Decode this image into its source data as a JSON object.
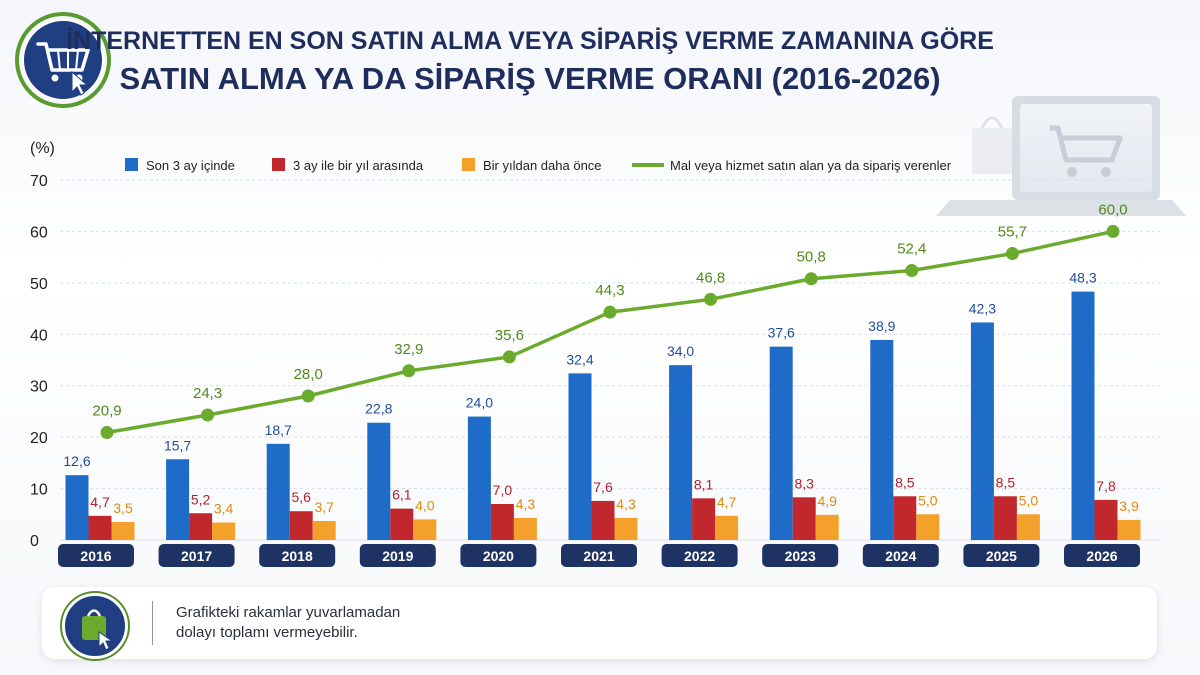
{
  "title_line1": "İNTERNETTEN EN SON SATIN ALMA VEYA SİPARİŞ VERME ZAMANINA GÖRE",
  "title_line2": "SATIN ALMA YA DA SİPARİŞ VERME ORANI (2016-2026)",
  "header_icon": "shopping-cart-cursor-icon",
  "decor_icon": "laptop-shopping-bag-icon",
  "note": {
    "icon": "shopping-bag-hand-icon",
    "text": "Grafikteki rakamlar yuvarlamadan\ndolayı toplamı vermeyebilir."
  },
  "colors": {
    "title": "#1f2d5c",
    "year_badge": "#1f3264",
    "series_1": "#1f6cc8",
    "series_2": "#c0282d",
    "series_3": "#f3a12a",
    "line": "#6aaa2c"
  },
  "chart_data": {
    "type": "bar",
    "ylabel": "(%)",
    "ylim": [
      0,
      70
    ],
    "yticks": [
      0,
      10,
      20,
      30,
      40,
      50,
      60,
      70
    ],
    "grid": true,
    "legend_position": "top",
    "categories": [
      "2016",
      "2017",
      "2018",
      "2019",
      "2020",
      "2021",
      "2022",
      "2023",
      "2024",
      "2025",
      "2026"
    ],
    "series": [
      {
        "name": "Son 3 ay içinde",
        "type": "bar",
        "color": "#1f6cc8",
        "values": [
          12.6,
          15.7,
          18.7,
          22.8,
          24.0,
          32.4,
          34.0,
          37.6,
          38.9,
          42.3,
          48.3
        ],
        "labels": [
          "12,6",
          "15,7",
          "18,7",
          "22,8",
          "24,0",
          "32,4",
          "34,0",
          "37,6",
          "38,9",
          "42,3",
          "48,3"
        ]
      },
      {
        "name": "3 ay ile bir yıl arasında",
        "type": "bar",
        "color": "#c0282d",
        "values": [
          4.7,
          5.2,
          5.6,
          6.1,
          7.0,
          7.6,
          8.1,
          8.3,
          8.5,
          8.5,
          7.8
        ],
        "labels": [
          "4,7",
          "5,2",
          "5,6",
          "6,1",
          "7,0",
          "7,6",
          "8,1",
          "8,3",
          "8,5",
          "8,5",
          "7,8"
        ]
      },
      {
        "name": "Bir yıldan daha önce",
        "type": "bar",
        "color": "#f3a12a",
        "values": [
          3.5,
          3.4,
          3.7,
          4.0,
          4.3,
          4.3,
          4.7,
          4.9,
          5.0,
          5.0,
          3.9
        ],
        "labels": [
          "3,5",
          "3,4",
          "3,7",
          "4,0",
          "4,3",
          "4,3",
          "4,7",
          "4,9",
          "5,0",
          "5,0",
          "3,9"
        ]
      },
      {
        "name": "Mal veya hizmet satın alan ya da sipariş verenler",
        "type": "line",
        "color": "#6aaa2c",
        "values": [
          20.9,
          24.3,
          28.0,
          32.9,
          35.6,
          44.3,
          46.8,
          50.8,
          52.4,
          55.7,
          60.0
        ],
        "labels": [
          "20,9",
          "24,3",
          "28,0",
          "32,9",
          "35,6",
          "44,3",
          "46,8",
          "50,8",
          "52,4",
          "55,7",
          "60,0"
        ]
      }
    ]
  }
}
